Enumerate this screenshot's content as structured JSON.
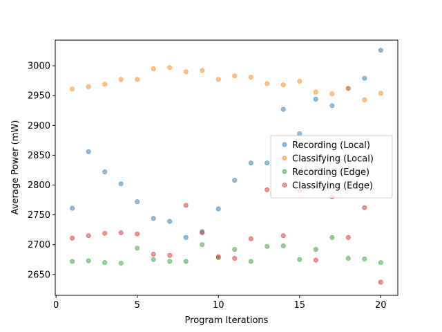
{
  "chart_data": {
    "type": "scatter",
    "xlabel": "Program Iterations",
    "ylabel": "Average Power (mW)",
    "xlim": [
      -0.05,
      21.05
    ],
    "ylim": [
      2615,
      3043
    ],
    "xticks": [
      0,
      5,
      10,
      15,
      20
    ],
    "yticks": [
      2650,
      2700,
      2750,
      2800,
      2850,
      2900,
      2950,
      3000
    ],
    "legend_position": "center-right",
    "grid": false,
    "series": [
      {
        "name": "Recording (Local)",
        "color": "#1f77b4",
        "x": [
          1,
          2,
          3,
          4,
          5,
          6,
          7,
          8,
          9,
          10,
          11,
          12,
          13,
          14,
          15,
          16,
          17,
          18,
          19,
          20
        ],
        "y": [
          2761,
          2856,
          2822,
          2802,
          2772,
          2744,
          2739,
          2712,
          2722,
          2760,
          2808,
          2837,
          2837,
          2927,
          2886,
          2944,
          2933,
          2962,
          2979,
          3026
        ]
      },
      {
        "name": "Classifying (Local)",
        "color": "#ff7f0e",
        "x": [
          1,
          2,
          3,
          4,
          5,
          6,
          7,
          8,
          9,
          10,
          11,
          12,
          13,
          14,
          15,
          16,
          17,
          18,
          19,
          20
        ],
        "y": [
          2961,
          2965,
          2969,
          2977,
          2977,
          2995,
          2997,
          2990,
          2992,
          2977,
          2983,
          2981,
          2970,
          2968,
          2974,
          2956,
          2953,
          2962,
          2943,
          2954
        ]
      },
      {
        "name": "Recording (Edge)",
        "color": "#2ca02c",
        "x": [
          1,
          2,
          3,
          4,
          5,
          6,
          7,
          8,
          9,
          10,
          11,
          12,
          13,
          14,
          15,
          16,
          17,
          18,
          19,
          20
        ],
        "y": [
          2672,
          2673,
          2670,
          2669,
          2694,
          2675,
          2672,
          2672,
          2700,
          2678,
          2692,
          2672,
          2697,
          2698,
          2675,
          2692,
          2712,
          2677,
          2676,
          2670
        ]
      },
      {
        "name": "Classifying (Edge)",
        "color": "#d62728",
        "x": [
          1,
          2,
          3,
          4,
          5,
          6,
          7,
          8,
          9,
          10,
          11,
          12,
          13,
          14,
          15,
          16,
          17,
          18,
          19,
          20
        ],
        "y": [
          2711,
          2715,
          2719,
          2720,
          2718,
          2684,
          2682,
          2766,
          2720,
          2680,
          2677,
          2710,
          2792,
          2715,
          2791,
          2674,
          2780,
          2712,
          2762,
          2637
        ]
      }
    ]
  }
}
